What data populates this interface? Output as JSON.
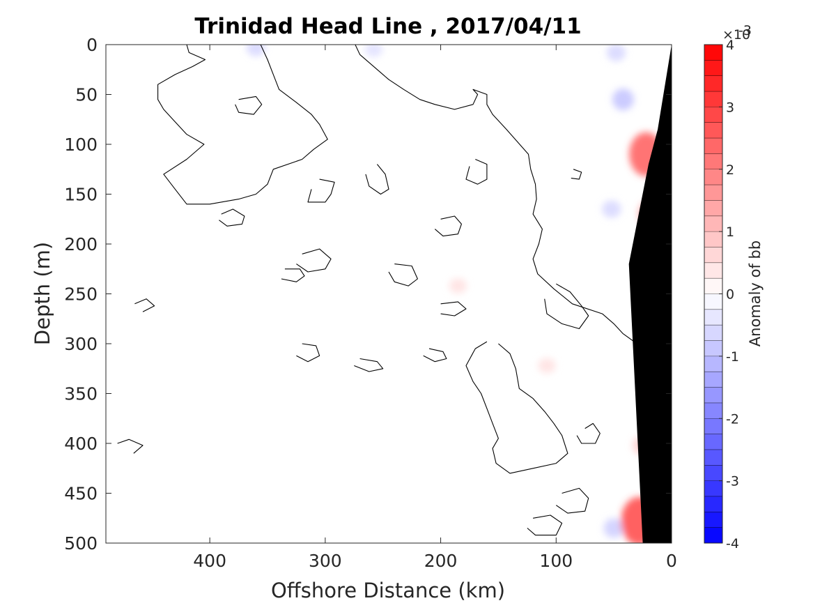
{
  "chart_data": {
    "type": "heatmap",
    "title": "Trinidad Head Line , 2017/04/11",
    "xlabel": "Offshore Distance (km)",
    "ylabel": "Depth (m)",
    "xlim": [
      490,
      0
    ],
    "ylim": [
      0,
      500
    ],
    "x_reversed": true,
    "y_reversed": true,
    "x_ticks": [
      400,
      300,
      200,
      100,
      0
    ],
    "y_ticks": [
      0,
      50,
      100,
      150,
      200,
      250,
      300,
      350,
      400,
      450,
      500
    ],
    "grid": false,
    "colorbar": {
      "label": "Anomaly of bb",
      "exponent_label": "×10",
      "exponent_power": "-3",
      "range": [
        -4,
        4
      ],
      "ticks": [
        -4,
        -3,
        -2,
        -1,
        0,
        1,
        2,
        3,
        4
      ],
      "levels": 32,
      "low_color": "#0000ff",
      "mid_color": "#ffffff",
      "high_color": "#ff0000"
    },
    "zero_contours": [
      [
        [
          420,
          0
        ],
        [
          418,
          8
        ],
        [
          404,
          15
        ],
        [
          415,
          22
        ],
        [
          430,
          30
        ],
        [
          445,
          40
        ],
        [
          445,
          55
        ],
        [
          440,
          65
        ],
        [
          432,
          75
        ],
        [
          420,
          90
        ],
        [
          405,
          100
        ],
        [
          420,
          115
        ],
        [
          440,
          130
        ],
        [
          430,
          145
        ],
        [
          420,
          160
        ],
        [
          400,
          160
        ],
        [
          375,
          155
        ],
        [
          360,
          150
        ],
        [
          350,
          140
        ],
        [
          345,
          125
        ],
        [
          320,
          115
        ],
        [
          310,
          105
        ],
        [
          298,
          95
        ],
        [
          305,
          80
        ],
        [
          312,
          70
        ],
        [
          325,
          58
        ],
        [
          340,
          45
        ],
        [
          345,
          30
        ],
        [
          350,
          15
        ],
        [
          356,
          0
        ]
      ],
      [
        [
          274,
          0
        ],
        [
          270,
          10
        ],
        [
          260,
          20
        ],
        [
          245,
          35
        ],
        [
          232,
          45
        ],
        [
          218,
          55
        ],
        [
          205,
          60
        ],
        [
          188,
          65
        ],
        [
          172,
          60
        ],
        [
          168,
          50
        ],
        [
          172,
          45
        ],
        [
          160,
          50
        ],
        [
          160,
          60
        ],
        [
          155,
          70
        ],
        [
          143,
          85
        ],
        [
          124,
          110
        ],
        [
          122,
          125
        ],
        [
          118,
          140
        ],
        [
          117,
          155
        ],
        [
          120,
          170
        ],
        [
          112,
          185
        ],
        [
          115,
          200
        ],
        [
          120,
          215
        ],
        [
          116,
          230
        ],
        [
          102,
          245
        ],
        [
          86,
          260
        ],
        [
          60,
          270
        ],
        [
          50,
          280
        ],
        [
          42,
          290
        ],
        [
          30,
          300
        ],
        [
          18,
          310
        ],
        [
          12,
          330
        ],
        [
          8,
          360
        ],
        [
          5,
          400
        ],
        [
          2,
          440
        ],
        [
          0,
          480
        ],
        [
          0,
          500
        ]
      ],
      [
        [
          375,
          55
        ],
        [
          360,
          52
        ],
        [
          355,
          60
        ],
        [
          362,
          70
        ],
        [
          375,
          68
        ],
        [
          378,
          60
        ]
      ],
      [
        [
          305,
          135
        ],
        [
          292,
          138
        ],
        [
          295,
          150
        ],
        [
          300,
          158
        ],
        [
          315,
          158
        ],
        [
          312,
          145
        ]
      ],
      [
        [
          390,
          170
        ],
        [
          380,
          165
        ],
        [
          370,
          172
        ],
        [
          372,
          180
        ],
        [
          385,
          182
        ],
        [
          392,
          176
        ]
      ],
      [
        [
          255,
          120
        ],
        [
          248,
          130
        ],
        [
          245,
          145
        ],
        [
          252,
          150
        ],
        [
          262,
          142
        ],
        [
          265,
          130
        ]
      ],
      [
        [
          170,
          115
        ],
        [
          160,
          120
        ],
        [
          160,
          135
        ],
        [
          168,
          140
        ],
        [
          178,
          135
        ],
        [
          175,
          122
        ]
      ],
      [
        [
          85,
          125
        ],
        [
          78,
          128
        ],
        [
          80,
          135
        ],
        [
          87,
          134
        ]
      ],
      [
        [
          200,
          175
        ],
        [
          188,
          172
        ],
        [
          182,
          180
        ],
        [
          185,
          190
        ],
        [
          198,
          192
        ],
        [
          205,
          185
        ]
      ],
      [
        [
          320,
          210
        ],
        [
          305,
          205
        ],
        [
          295,
          215
        ],
        [
          300,
          225
        ],
        [
          315,
          228
        ],
        [
          325,
          220
        ]
      ],
      [
        [
          240,
          220
        ],
        [
          225,
          222
        ],
        [
          220,
          235
        ],
        [
          228,
          242
        ],
        [
          240,
          238
        ],
        [
          245,
          228
        ]
      ],
      [
        [
          335,
          225
        ],
        [
          322,
          225
        ],
        [
          318,
          232
        ],
        [
          325,
          238
        ],
        [
          338,
          235
        ]
      ],
      [
        [
          200,
          260
        ],
        [
          185,
          258
        ],
        [
          178,
          265
        ],
        [
          188,
          272
        ],
        [
          200,
          270
        ]
      ],
      [
        [
          320,
          300
        ],
        [
          308,
          302
        ],
        [
          305,
          312
        ],
        [
          315,
          318
        ],
        [
          325,
          312
        ]
      ],
      [
        [
          270,
          315
        ],
        [
          255,
          318
        ],
        [
          250,
          325
        ],
        [
          262,
          328
        ],
        [
          275,
          322
        ]
      ],
      [
        [
          210,
          305
        ],
        [
          198,
          308
        ],
        [
          195,
          315
        ],
        [
          205,
          318
        ],
        [
          215,
          312
        ]
      ],
      [
        [
          100,
          240
        ],
        [
          88,
          248
        ],
        [
          78,
          262
        ],
        [
          72,
          272
        ],
        [
          80,
          285
        ],
        [
          95,
          280
        ],
        [
          108,
          270
        ],
        [
          110,
          255
        ]
      ],
      [
        [
          150,
          300
        ],
        [
          140,
          310
        ],
        [
          135,
          325
        ],
        [
          132,
          345
        ],
        [
          120,
          355
        ],
        [
          110,
          368
        ],
        [
          102,
          380
        ],
        [
          95,
          392
        ],
        [
          90,
          410
        ],
        [
          100,
          420
        ],
        [
          120,
          425
        ],
        [
          140,
          430
        ],
        [
          152,
          420
        ],
        [
          155,
          405
        ],
        [
          150,
          395
        ],
        [
          155,
          380
        ],
        [
          160,
          365
        ],
        [
          165,
          350
        ],
        [
          172,
          338
        ],
        [
          178,
          322
        ],
        [
          170,
          305
        ],
        [
          160,
          298
        ]
      ],
      [
        [
          75,
          385
        ],
        [
          68,
          380
        ],
        [
          62,
          390
        ],
        [
          66,
          400
        ],
        [
          78,
          400
        ],
        [
          82,
          392
        ]
      ],
      [
        [
          95,
          450
        ],
        [
          80,
          445
        ],
        [
          72,
          455
        ],
        [
          75,
          468
        ],
        [
          90,
          470
        ],
        [
          100,
          462
        ]
      ],
      [
        [
          120,
          475
        ],
        [
          105,
          472
        ],
        [
          95,
          480
        ],
        [
          100,
          492
        ],
        [
          118,
          492
        ],
        [
          125,
          485
        ]
      ],
      [
        [
          465,
          260
        ],
        [
          455,
          255
        ],
        [
          448,
          262
        ],
        [
          458,
          268
        ]
      ],
      [
        [
          480,
          400
        ],
        [
          470,
          396
        ],
        [
          458,
          402
        ],
        [
          466,
          410
        ]
      ]
    ],
    "anomaly_blobs": [
      {
        "x": 360,
        "depth": 3,
        "value": -0.4
      },
      {
        "x": 258,
        "depth": 5,
        "value": -0.3
      },
      {
        "x": 42,
        "depth": 55,
        "value": -0.6
      },
      {
        "x": 48,
        "depth": 8,
        "value": -0.4
      },
      {
        "x": 52,
        "depth": 165,
        "value": -0.4
      },
      {
        "x": 50,
        "depth": 485,
        "value": -0.5
      },
      {
        "x": 22,
        "depth": 110,
        "value": 1.6
      },
      {
        "x": 18,
        "depth": 170,
        "value": 0.9
      },
      {
        "x": 18,
        "depth": 300,
        "value": 0.5
      },
      {
        "x": 25,
        "depth": 402,
        "value": 0.5
      },
      {
        "x": 28,
        "depth": 478,
        "value": 1.8
      },
      {
        "x": 185,
        "depth": 242,
        "value": 0.3
      },
      {
        "x": 108,
        "depth": 322,
        "value": 0.3
      }
    ],
    "bathymetry": [
      [
        0,
        0
      ],
      [
        0,
        500
      ],
      [
        25,
        500
      ],
      [
        37,
        220
      ],
      [
        20,
        120
      ],
      [
        12,
        85
      ],
      [
        0,
        0
      ]
    ]
  }
}
